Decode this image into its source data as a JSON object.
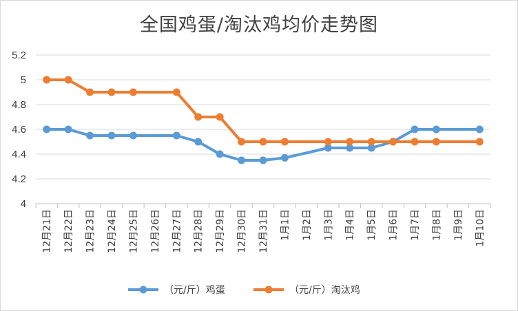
{
  "chart_data": {
    "type": "line",
    "title": "全国鸡蛋/淘汰鸡均价走势图",
    "categories": [
      "12月21日",
      "12月22日",
      "12月23日",
      "12月24日",
      "12月25日",
      "12月26日",
      "12月27日",
      "12月28日",
      "12月29日",
      "12月30日",
      "12月31日",
      "1月1日",
      "1月2日",
      "1月3日",
      "1月4日",
      "1月5日",
      "1月6日",
      "1月7日",
      "1月8日",
      "1月9日",
      "1月10日"
    ],
    "series": [
      {
        "name": "（元/斤）鸡蛋",
        "color": "#5b9bd5",
        "values": [
          4.6,
          4.6,
          4.55,
          4.55,
          4.55,
          null,
          4.55,
          4.5,
          4.4,
          4.35,
          4.35,
          4.37,
          null,
          4.45,
          4.45,
          4.45,
          4.5,
          4.6,
          4.6,
          null,
          4.6
        ]
      },
      {
        "name": "（元/斤）淘汰鸡",
        "color": "#ed7d31",
        "values": [
          5.0,
          5.0,
          4.9,
          4.9,
          4.9,
          null,
          4.9,
          4.7,
          4.7,
          4.5,
          4.5,
          4.5,
          null,
          4.5,
          4.5,
          4.5,
          4.5,
          4.5,
          4.5,
          null,
          4.5
        ]
      }
    ],
    "ylim": [
      4,
      5.2
    ],
    "yticks": [
      "4",
      "4.2",
      "4.4",
      "4.6",
      "4.8",
      "5",
      "5.2"
    ],
    "grid": true,
    "legend": "bottom"
  }
}
